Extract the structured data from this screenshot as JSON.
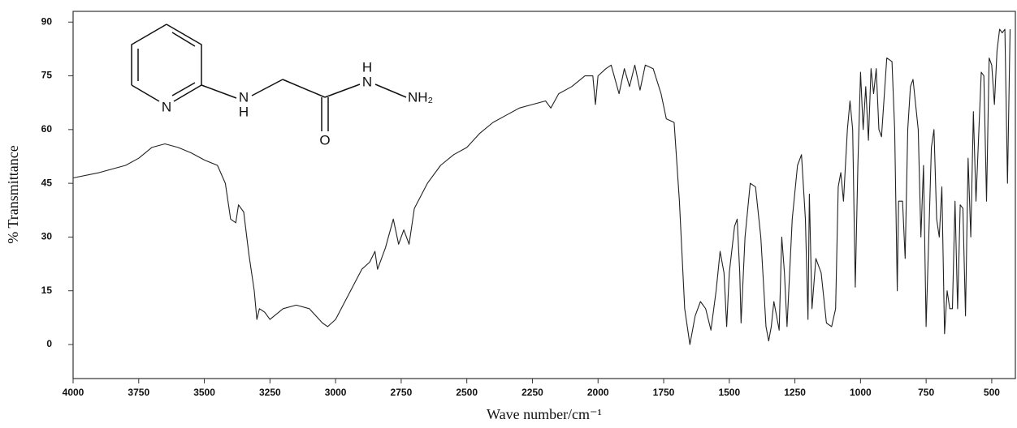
{
  "chart_data": {
    "type": "line",
    "x_label": "Wave number/cm⁻¹",
    "y_label": "% Transmittance",
    "structure_labels": [
      "N",
      "N",
      "H",
      "O",
      "H",
      "N",
      "NH₂"
    ],
    "xlim": [
      4000,
      410
    ],
    "ylim": [
      -9.5,
      93
    ],
    "xticks": [
      4000,
      3750,
      3500,
      3250,
      3000,
      2750,
      2500,
      2250,
      2000,
      1750,
      1500,
      1250,
      1000,
      750,
      500
    ],
    "yticks": [
      0,
      15,
      30,
      45,
      60,
      75,
      90
    ],
    "color": "#222222",
    "x": [
      4000,
      3900,
      3800,
      3750,
      3700,
      3650,
      3600,
      3550,
      3500,
      3450,
      3420,
      3400,
      3380,
      3370,
      3350,
      3330,
      3310,
      3300,
      3290,
      3270,
      3250,
      3200,
      3150,
      3100,
      3050,
      3030,
      3000,
      2950,
      2900,
      2870,
      2850,
      2840,
      2810,
      2780,
      2760,
      2740,
      2720,
      2700,
      2650,
      2600,
      2550,
      2500,
      2450,
      2400,
      2350,
      2300,
      2250,
      2200,
      2180,
      2150,
      2100,
      2050,
      2020,
      2010,
      2000,
      1970,
      1950,
      1920,
      1900,
      1880,
      1860,
      1840,
      1820,
      1790,
      1760,
      1740,
      1710,
      1690,
      1670,
      1650,
      1630,
      1610,
      1590,
      1570,
      1550,
      1535,
      1520,
      1510,
      1500,
      1480,
      1470,
      1460,
      1455,
      1440,
      1420,
      1400,
      1380,
      1360,
      1350,
      1340,
      1330,
      1320,
      1310,
      1300,
      1290,
      1280,
      1260,
      1240,
      1225,
      1210,
      1200,
      1195,
      1185,
      1170,
      1150,
      1130,
      1110,
      1095,
      1085,
      1075,
      1065,
      1050,
      1040,
      1030,
      1020,
      1010,
      1000,
      990,
      980,
      970,
      960,
      950,
      940,
      930,
      920,
      900,
      880,
      870,
      860,
      855,
      840,
      830,
      820,
      810,
      800,
      780,
      770,
      760,
      750,
      740,
      730,
      720,
      710,
      700,
      690,
      680,
      670,
      660,
      650,
      640,
      630,
      620,
      610,
      600,
      590,
      580,
      570,
      560,
      540,
      530,
      520,
      510,
      500,
      490,
      480,
      470,
      460,
      450,
      440,
      430
    ],
    "values": [
      46.5,
      48,
      50,
      52,
      55,
      56,
      55,
      53.5,
      51.5,
      50,
      45,
      35,
      34,
      39,
      37,
      25,
      15,
      7,
      10,
      9,
      7,
      10,
      11,
      10,
      6,
      5,
      7,
      14,
      21,
      23,
      26,
      21,
      27,
      35,
      28,
      32,
      28,
      38,
      45,
      50,
      53,
      55,
      59,
      62,
      64,
      66,
      67,
      68,
      66,
      70,
      72,
      75,
      75,
      67,
      75,
      77,
      78,
      70,
      77,
      72,
      78,
      71,
      78,
      77,
      70,
      63,
      62,
      40,
      10,
      0,
      8,
      12,
      10,
      4,
      15,
      26,
      20,
      5,
      20,
      33,
      35,
      20,
      6,
      30,
      45,
      44,
      30,
      5,
      1,
      5,
      12,
      8,
      4,
      30,
      20,
      5,
      35,
      50,
      53,
      35,
      7,
      42,
      10,
      24,
      20,
      6,
      5,
      10,
      44,
      48,
      40,
      60,
      68,
      60,
      16,
      50,
      76,
      60,
      72,
      57,
      77,
      70,
      77,
      60,
      58,
      80,
      79,
      60,
      15,
      40,
      40,
      24,
      60,
      72,
      74,
      60,
      30,
      50,
      5,
      30,
      55,
      60,
      35,
      30,
      44,
      3,
      15,
      10,
      10,
      40,
      10,
      39,
      38,
      8,
      52,
      30,
      65,
      40,
      76,
      75,
      40,
      80,
      78,
      67,
      82,
      88,
      87,
      88,
      45,
      88
    ]
  }
}
